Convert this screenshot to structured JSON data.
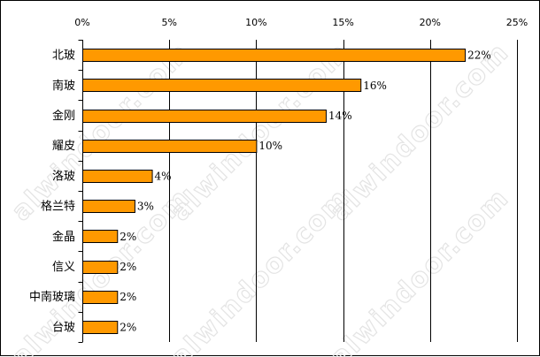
{
  "chart_data": {
    "type": "bar",
    "orientation": "horizontal",
    "categories": [
      "北玻",
      "南玻",
      "金刚",
      "耀皮",
      "洛玻",
      "格兰特",
      "金晶",
      "信义",
      "中南玻璃",
      "台玻"
    ],
    "values": [
      22,
      16,
      14,
      10,
      4,
      3,
      2,
      2,
      2,
      2
    ],
    "value_labels": [
      "22%",
      "16%",
      "14%",
      "10%",
      "4%",
      "3%",
      "2%",
      "2%",
      "2%",
      "2%"
    ],
    "xlim": [
      0,
      25
    ],
    "x_ticks": [
      0,
      5,
      10,
      15,
      20,
      25
    ],
    "x_tick_labels": [
      "0%",
      "5%",
      "10%",
      "15%",
      "20%",
      "25%"
    ],
    "x_axis_position": "top",
    "grid": "vertical",
    "legend": "none",
    "bar_color": "#FF9900",
    "bar_edge_color": "#000000",
    "watermark_text": "alwindoor.com"
  }
}
